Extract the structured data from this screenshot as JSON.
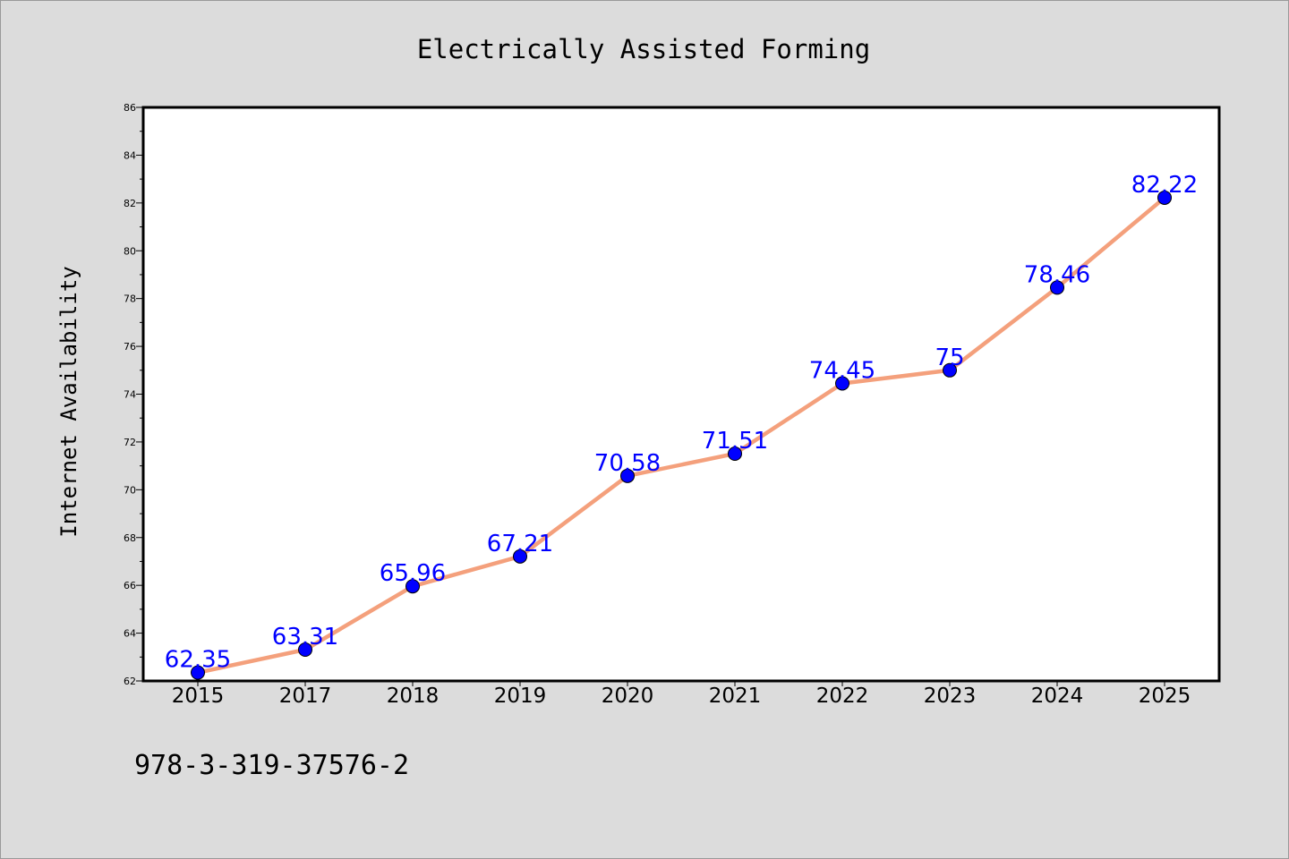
{
  "chart_data": {
    "type": "line",
    "title": "Electrically Assisted Forming",
    "xlabel": "",
    "ylabel": "Internet Availability",
    "categories": [
      "2015",
      "2017",
      "2018",
      "2019",
      "2020",
      "2021",
      "2022",
      "2023",
      "2024",
      "2025"
    ],
    "series": [
      {
        "values": [
          62.35,
          63.31,
          65.96,
          67.21,
          70.58,
          71.51,
          74.45,
          75,
          78.46,
          82.22
        ]
      }
    ],
    "data_labels": [
      "62.35",
      "63.31",
      "65.96",
      "67.21",
      "70.58",
      "71.51",
      "74.45",
      "75",
      "78.46",
      "82.22"
    ],
    "ylim": [
      62,
      86
    ],
    "yticks": [
      "62",
      "64",
      "66",
      "68",
      "70",
      "72",
      "74",
      "76",
      "78",
      "80",
      "82",
      "84",
      "86"
    ],
    "grid": false,
    "legend": "none",
    "colors": {
      "line": "#f4a07c",
      "marker": "#0000ff",
      "label": "#0000ff",
      "figure_background": "#dcdcdc",
      "plot_background": "#ffffff"
    }
  },
  "caption": "978-3-319-37576-2"
}
